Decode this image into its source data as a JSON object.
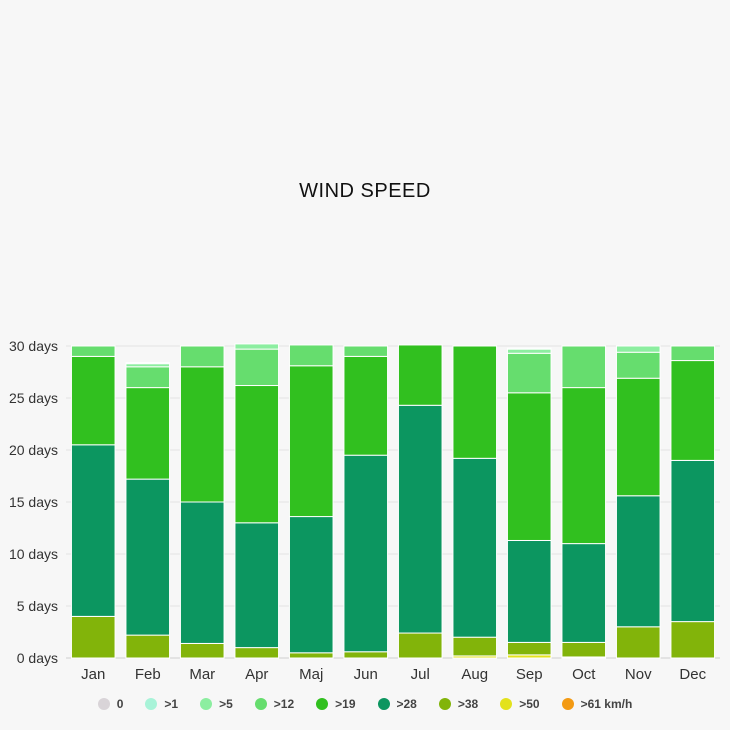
{
  "chart_data": {
    "type": "bar",
    "stacked": true,
    "title": "WIND SPEED",
    "xlabel": "",
    "ylabel": "",
    "ylim": [
      0,
      30
    ],
    "y_ticks": [
      "0 days",
      "5 days",
      "10 days",
      "15 days",
      "20 days",
      "25 days",
      "30 days"
    ],
    "grid": true,
    "legend_position": "bottom",
    "categories": [
      "Jan",
      "Feb",
      "Mar",
      "Apr",
      "Maj",
      "Jun",
      "Jul",
      "Aug",
      "Sep",
      "Oct",
      "Nov",
      "Dec"
    ],
    "series": [
      {
        "name": "0",
        "color": "#d9d4d8",
        "values": [
          0,
          0,
          0,
          0,
          0,
          0,
          0,
          0,
          0,
          0,
          0,
          0
        ]
      },
      {
        "name": ">1",
        "color": "#a8f3d8",
        "values": [
          0,
          0.1,
          0,
          0,
          0,
          0,
          0,
          0,
          0.1,
          0,
          0,
          0
        ]
      },
      {
        "name": ">5",
        "color": "#8ceea0",
        "values": [
          0,
          0.3,
          0,
          0.5,
          0,
          0,
          0,
          0,
          0.4,
          0,
          0.6,
          0
        ]
      },
      {
        "name": ">12",
        "color": "#66dd6e",
        "values": [
          1,
          2,
          2,
          3.5,
          2,
          1,
          0,
          0,
          3.8,
          4,
          2.5,
          1.4
        ]
      },
      {
        "name": ">19",
        "color": "#31c01f",
        "values": [
          8.5,
          8.8,
          13,
          13.2,
          14.5,
          9.5,
          5.8,
          10.8,
          14.2,
          15,
          11.3,
          9.6
        ]
      },
      {
        "name": ">28",
        "color": "#0c9660",
        "values": [
          16.5,
          15,
          13.6,
          12,
          13.1,
          18.9,
          21.9,
          17.2,
          9.8,
          9.5,
          12.6,
          15.5
        ]
      },
      {
        "name": ">38",
        "color": "#82b40a",
        "values": [
          4,
          2.2,
          1.4,
          1,
          0.5,
          0.6,
          2.4,
          1.8,
          1.2,
          1.4,
          3,
          3.5
        ]
      },
      {
        "name": ">50",
        "color": "#e3e21c",
        "values": [
          0,
          0,
          0,
          0,
          0,
          0,
          0,
          0.2,
          0.3,
          0.1,
          0,
          0
        ]
      },
      {
        "name": ">61 km/h",
        "color": "#f39a14",
        "values": [
          0,
          0,
          0,
          0,
          0,
          0,
          0,
          0,
          0,
          0,
          0,
          0
        ]
      }
    ]
  }
}
